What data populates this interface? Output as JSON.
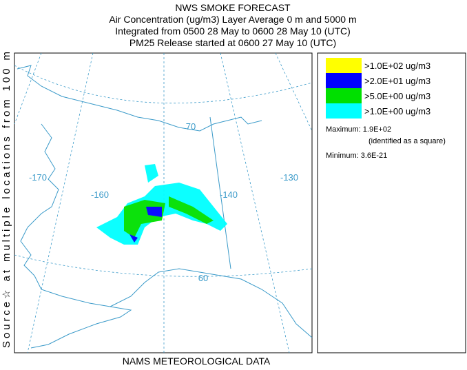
{
  "header": {
    "title": "NWS SMOKE FORECAST",
    "lines": [
      "Air Concentration (ug/m3) Layer Average    0 m and  5000 m",
      "Integrated from 0500 28 May to 0600 28 May 10 (UTC)",
      "PM25 Release started at 0600 27 May 10 (UTC)"
    ]
  },
  "side_label": "Source☆ at multiple locations   from   100 m",
  "footer": "NAMS METEOROLOGICAL DATA",
  "map": {
    "labels": [
      "-170",
      "-160",
      "-140",
      "-130",
      "70",
      "60"
    ]
  },
  "legend": {
    "entries": [
      {
        "label": ">1.0E+02 ug/m3",
        "color": "#ffff00"
      },
      {
        "label": ">2.0E+01 ug/m3",
        "color": "#0000ff"
      },
      {
        "label": ">5.0E+00 ug/m3",
        "color": "#00e000"
      },
      {
        "label": ">1.0E+00 ug/m3",
        "color": "#00ffff"
      }
    ],
    "maximum": "Maximum: 1.9E+02",
    "maximum_note": "(identified as a square)",
    "minimum": "Minimum: 3.6E-21"
  }
}
